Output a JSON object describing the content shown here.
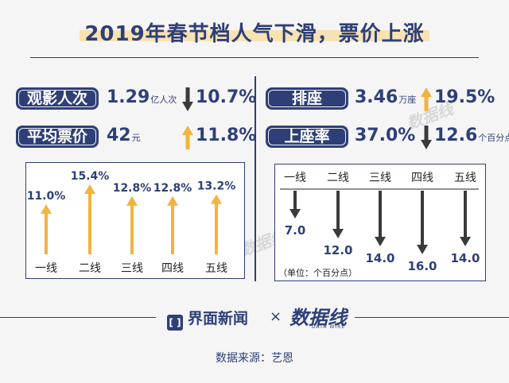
{
  "title": "2019年春节档人气下滑，票价上涨",
  "left_panel": {
    "metrics": [
      {
        "label": "观影人次",
        "value": "1.29",
        "unit": "亿人次",
        "direction": "down",
        "change": "10.7%"
      },
      {
        "label": "平均票价",
        "value": "42",
        "unit": "元",
        "direction": "up",
        "change": "11.8%"
      }
    ]
  },
  "right_panel": {
    "metrics": [
      {
        "label": "排座",
        "value": "3.46",
        "unit": "万座",
        "direction": "up",
        "change": "19.5%"
      },
      {
        "label": "上座率",
        "value": "37.0%",
        "unit": "",
        "direction": "down",
        "change": "12.6",
        "change_unit": "个百分点"
      }
    ],
    "unit_note": "（单位：个百分点）"
  },
  "chart_data": [
    {
      "type": "bar",
      "categories": [
        "一线",
        "二线",
        "三线",
        "四线",
        "五线"
      ],
      "values": [
        11.0,
        15.4,
        12.8,
        12.8,
        13.2
      ],
      "value_labels": [
        "11.0%",
        "15.4%",
        "12.8%",
        "12.8%",
        "13.2%"
      ],
      "direction": "up",
      "color": "#f2b33d"
    },
    {
      "type": "bar",
      "categories": [
        "一线",
        "二线",
        "三线",
        "四线",
        "五线"
      ],
      "values": [
        7.0,
        12.0,
        14.0,
        16.0,
        14.0
      ],
      "value_labels": [
        "7.0",
        "12.0",
        "14.0",
        "16.0",
        "14.0"
      ],
      "direction": "down",
      "color": "#3a3a3a"
    }
  ],
  "footer": {
    "brand": "界面新闻",
    "times": "×",
    "logo": "数据线",
    "logo_sub": "DATA WIRE",
    "source": "数据来源：艺恩"
  },
  "colors": {
    "navy": "#2e3f78",
    "orange": "#f2b33d",
    "dark": "#3a3a3a"
  }
}
